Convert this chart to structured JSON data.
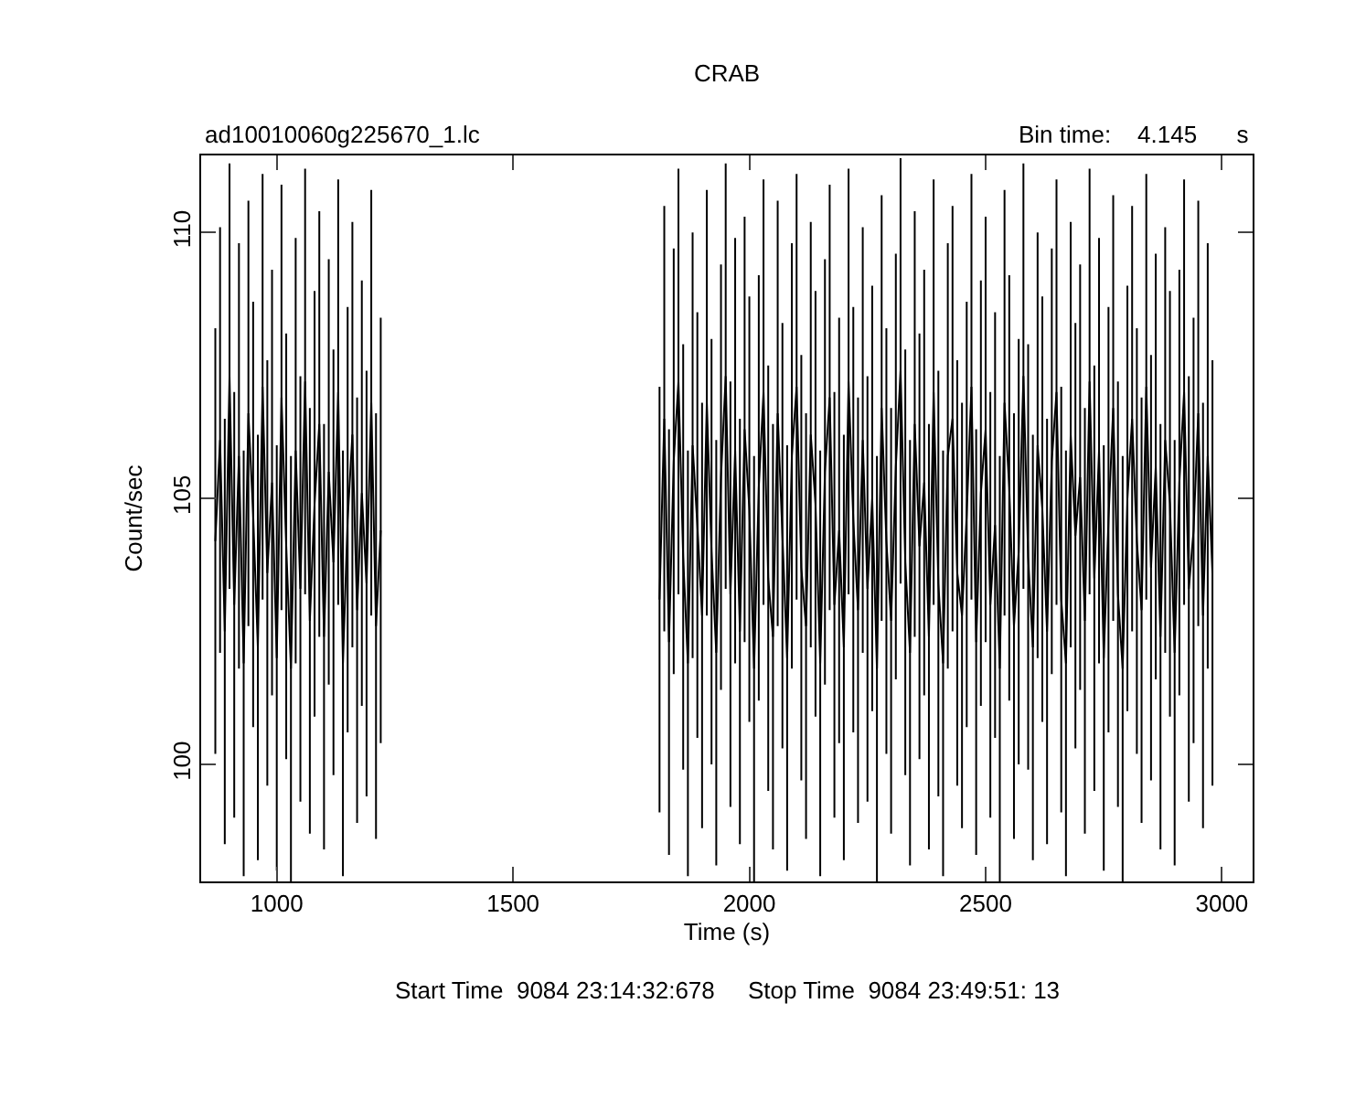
{
  "chart_data": {
    "type": "line",
    "title": "CRAB",
    "xlabel": "Time (s)",
    "ylabel": "Count/sec",
    "annotations": [
      "ad10010060g225670_1.lc",
      "Bin time:    4.145      s",
      "Start Time  9084 23:14:32:678     Stop Time  9084 23:49:51: 13"
    ],
    "xlim": [
      840,
      3065
    ],
    "xticks": [
      1000,
      1500,
      2000,
      2500,
      3000
    ],
    "ylim": [
      97.8,
      111.45
    ],
    "yticks": [
      100,
      105,
      110
    ],
    "grid": false,
    "series": [
      {
        "color": "#000000",
        "x": [
          870,
          880,
          890,
          900,
          910,
          920,
          930,
          940,
          950,
          960,
          970,
          980,
          990,
          1000,
          1010,
          1020,
          1030,
          1040,
          1050,
          1060,
          1070,
          1080,
          1090,
          1100,
          1110,
          1120,
          1130,
          1140,
          1150,
          1160,
          1170,
          1180,
          1190,
          1200,
          1210,
          1220,
          1500,
          1810,
          1820,
          1830,
          1840,
          1850,
          1860,
          1870,
          1880,
          1890,
          1900,
          1910,
          1920,
          1930,
          1940,
          1950,
          1960,
          1970,
          1980,
          1990,
          2000,
          2010,
          2020,
          2030,
          2040,
          2050,
          2060,
          2070,
          2080,
          2090,
          2100,
          2110,
          2120,
          2130,
          2140,
          2150,
          2160,
          2170,
          2180,
          2190,
          2200,
          2210,
          2220,
          2230,
          2240,
          2250,
          2260,
          2270,
          2280,
          2290,
          2300,
          2310,
          2320,
          2330,
          2340,
          2350,
          2360,
          2370,
          2380,
          2390,
          2400,
          2410,
          2420,
          2430,
          2440,
          2450,
          2460,
          2470,
          2480,
          2490,
          2500,
          2510,
          2520,
          2530,
          2540,
          2550,
          2560,
          2570,
          2580,
          2590,
          2600,
          2610,
          2620,
          2630,
          2640,
          2650,
          2660,
          2670,
          2680,
          2690,
          2700,
          2710,
          2720,
          2730,
          2740,
          2750,
          2760,
          2770,
          2780,
          2790,
          2800,
          2810,
          2820,
          2830,
          2840,
          2850,
          2860,
          2870,
          2880,
          2890,
          2900,
          2910,
          2920,
          2930,
          2940,
          2950,
          2960,
          2970,
          2980
        ],
        "values": [
          104.2,
          106.1,
          102.5,
          107.3,
          103.0,
          105.8,
          101.9,
          106.6,
          104.7,
          102.2,
          107.1,
          103.6,
          105.3,
          102.0,
          106.9,
          104.1,
          101.8,
          105.9,
          103.3,
          107.2,
          102.7,
          104.9,
          106.4,
          102.4,
          105.5,
          103.8,
          107.0,
          101.9,
          104.6,
          106.2,
          102.9,
          105.1,
          103.4,
          106.8,
          102.6,
          104.4,
          null,
          103.1,
          106.5,
          102.3,
          105.7,
          107.2,
          103.9,
          101.9,
          106.0,
          104.5,
          102.8,
          106.8,
          104.0,
          102.1,
          105.4,
          107.3,
          103.2,
          105.9,
          102.5,
          106.3,
          104.8,
          101.8,
          105.2,
          107.0,
          103.5,
          102.4,
          106.6,
          104.3,
          102.0,
          105.8,
          107.1,
          103.7,
          102.6,
          106.2,
          104.9,
          101.9,
          105.5,
          106.9,
          103.0,
          104.4,
          102.2,
          107.2,
          104.6,
          102.9,
          106.1,
          103.3,
          105.0,
          101.8,
          106.7,
          104.2,
          102.7,
          105.6,
          107.4,
          103.8,
          102.1,
          106.4,
          104.1,
          105.3,
          102.4,
          107.0,
          103.4,
          101.9,
          105.8,
          106.5,
          103.6,
          102.8,
          104.7,
          107.1,
          102.3,
          105.1,
          106.3,
          103.0,
          104.5,
          101.8,
          106.8,
          105.2,
          102.6,
          104.0,
          107.3,
          103.9,
          102.2,
          106.0,
          104.8,
          102.5,
          105.7,
          107.0,
          103.1,
          101.9,
          106.2,
          104.3,
          105.4,
          102.7,
          107.2,
          103.5,
          105.9,
          102.0,
          104.6,
          106.7,
          103.2,
          101.8,
          105.0,
          106.5,
          104.2,
          102.9,
          107.1,
          103.7,
          105.6,
          102.4,
          106.1,
          104.9,
          102.1,
          105.3,
          107.0,
          103.3,
          104.4,
          106.6,
          102.8,
          105.8,
          103.6
        ],
        "errors": [
          4,
          4,
          4,
          4,
          4,
          4,
          4,
          4,
          4,
          4,
          4,
          4,
          4,
          4,
          4,
          4,
          4,
          4,
          4,
          4,
          4,
          4,
          4,
          4,
          4,
          4,
          4,
          4,
          4,
          4,
          4,
          4,
          4,
          4,
          4,
          4,
          null,
          4,
          4,
          4,
          4,
          4,
          4,
          4,
          4,
          4,
          4,
          4,
          4,
          4,
          4,
          4,
          4,
          4,
          4,
          4,
          4,
          4,
          4,
          4,
          4,
          4,
          4,
          4,
          4,
          4,
          4,
          4,
          4,
          4,
          4,
          4,
          4,
          4,
          4,
          4,
          4,
          4,
          4,
          4,
          4,
          4,
          4,
          4,
          4,
          4,
          4,
          4,
          4,
          4,
          4,
          4,
          4,
          4,
          4,
          4,
          4,
          4,
          4,
          4,
          4,
          4,
          4,
          4,
          4,
          4,
          4,
          4,
          4,
          4,
          4,
          4,
          4,
          4,
          4,
          4,
          4,
          4,
          4,
          4,
          4,
          4,
          4,
          4,
          4,
          4,
          4,
          4,
          4,
          4,
          4,
          4,
          4,
          4,
          4,
          4,
          4,
          4,
          4,
          4,
          4,
          4,
          4,
          4,
          4,
          4,
          4,
          4,
          4,
          4,
          4,
          4,
          4,
          4,
          4
        ]
      }
    ]
  }
}
